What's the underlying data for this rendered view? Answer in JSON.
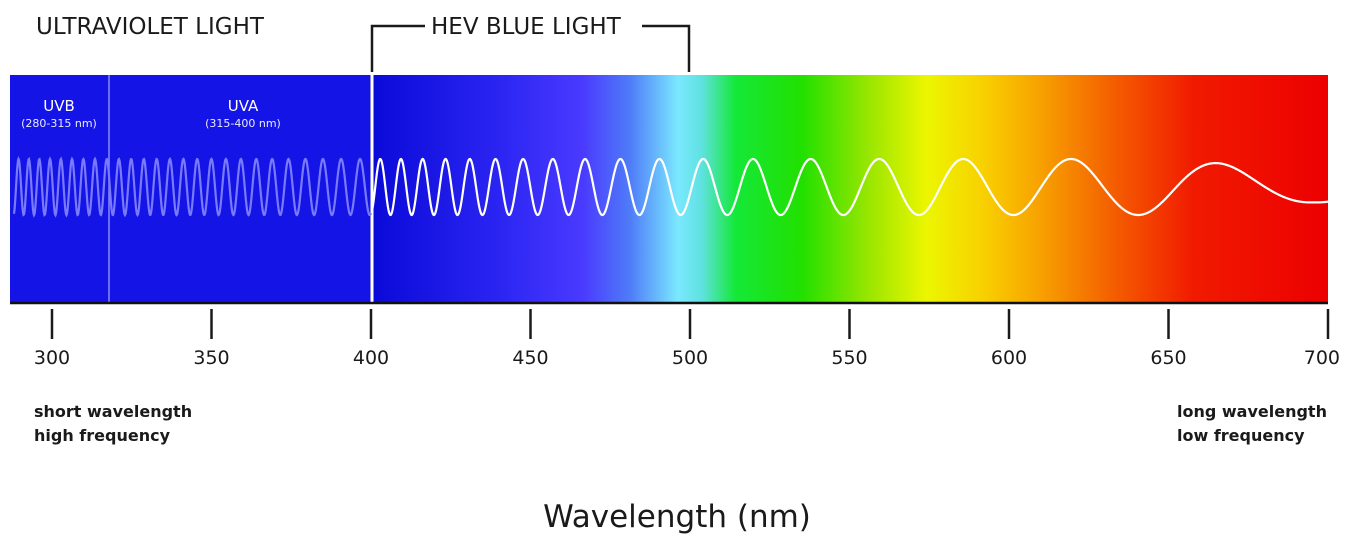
{
  "header": {
    "uv_label": "ULTRAVIOLET LIGHT",
    "hev_label": "HEV BLUE LIGHT"
  },
  "bands": {
    "uvb": {
      "name": "UVB",
      "range": "(280-315 nm)"
    },
    "uva": {
      "name": "UVA",
      "range": "(315-400 nm)"
    }
  },
  "axis": {
    "title": "Wavelength (nm)",
    "ticks": [
      "300",
      "350",
      "400",
      "450",
      "500",
      "550",
      "600",
      "650",
      "700"
    ]
  },
  "notes": {
    "left_line1": "short wavelength",
    "left_line2": "high frequency",
    "right_line1": "long wavelength",
    "right_line2": "low frequency"
  },
  "colors": {
    "uv_band": "#1414e6",
    "wave_visible": "#ffffff",
    "wave_uv": "#7a7aff",
    "text": "#1a1a1a"
  }
}
